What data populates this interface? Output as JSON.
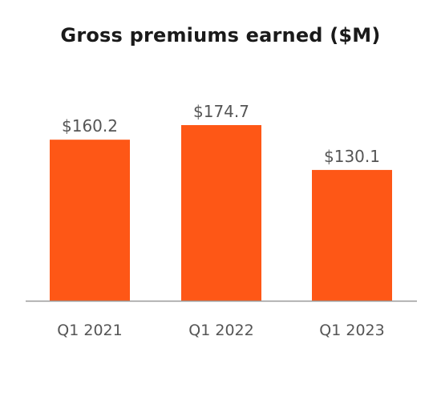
{
  "chart_data": {
    "type": "bar",
    "title": "Gross premiums earned ($M)",
    "categories": [
      "Q1 2021",
      "Q1 2022",
      "Q1 2023"
    ],
    "values": [
      160.2,
      174.7,
      130.1
    ],
    "value_labels": [
      "$160.2",
      "$174.7",
      "$130.1"
    ],
    "xlabel": "",
    "ylabel": "",
    "ylim": [
      0,
      174.7
    ],
    "grid": false,
    "legend": "none",
    "colors": {
      "bar": "#fe5716",
      "axis": "#999999",
      "title": "#1a1a1a",
      "label": "#555555"
    }
  }
}
